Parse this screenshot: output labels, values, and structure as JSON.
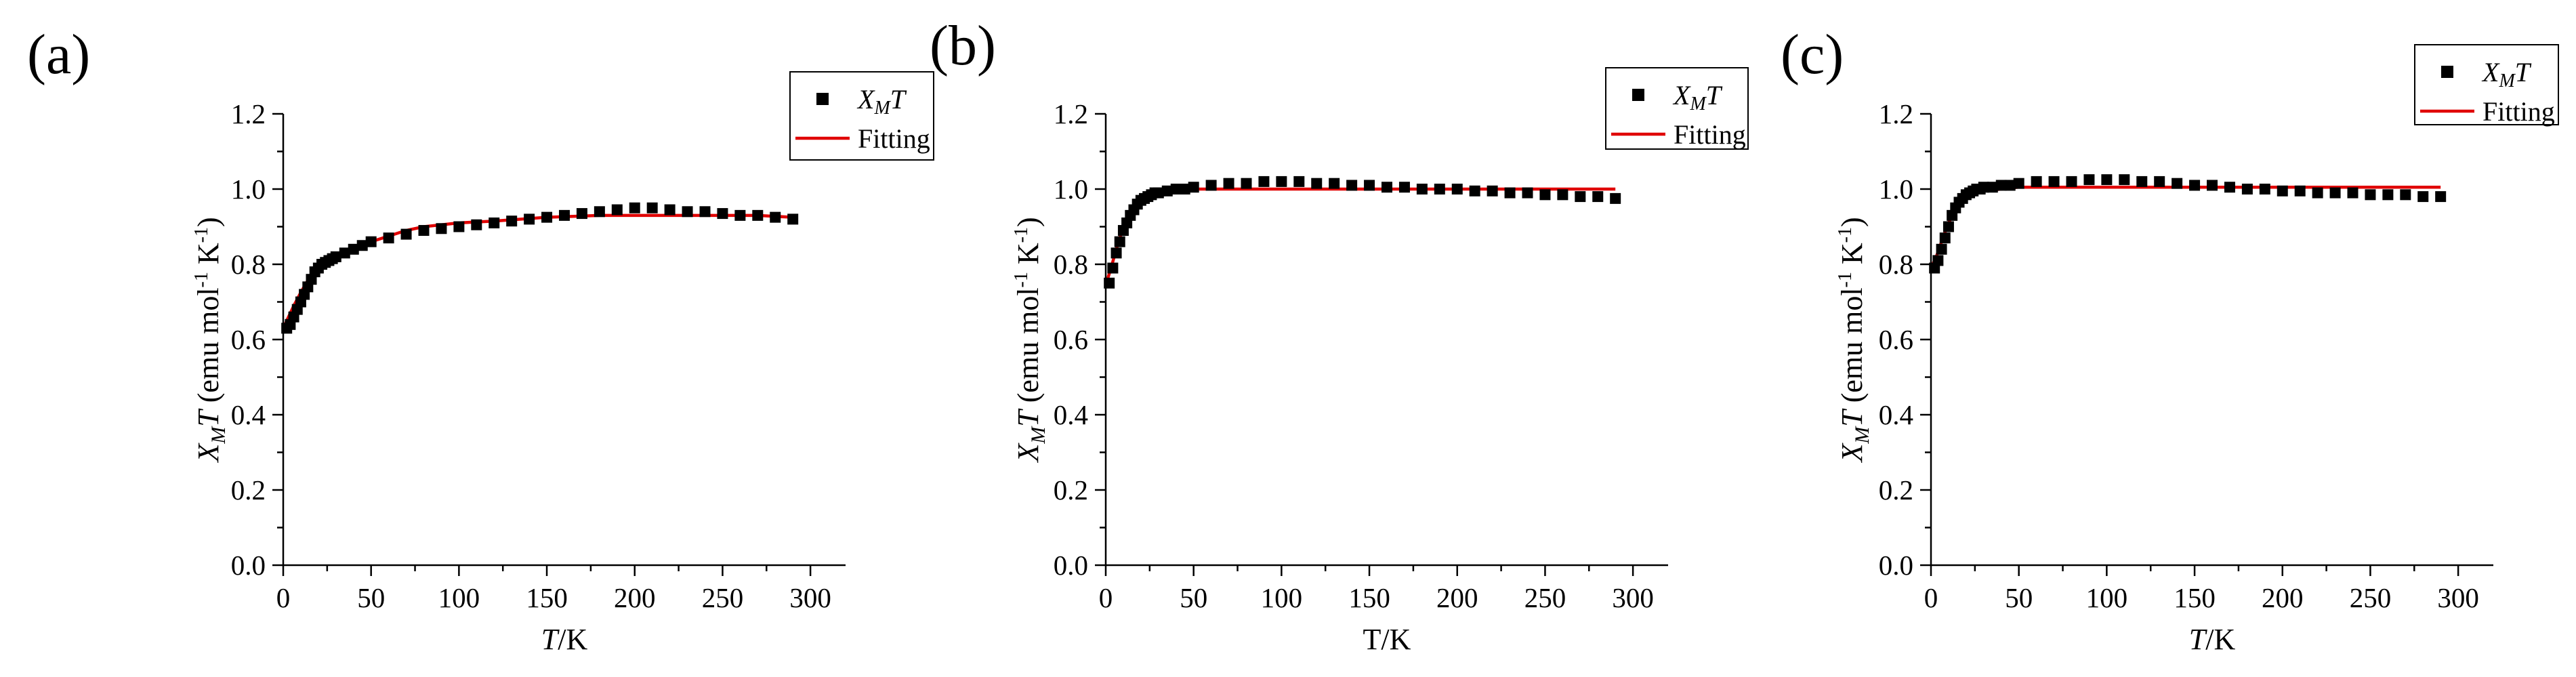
{
  "chart_data": [
    {
      "panel": "(a)",
      "type": "scatter",
      "xlabel": "T/K",
      "xlabel_italic": true,
      "ylabel": "XMT (emu mol-1 K-1)",
      "ylabel_parts": {
        "main": "X",
        "sub": "M",
        "main2": "T",
        "unit": " (emu mol",
        "sup1": "-1",
        "unit2": " K",
        "sup2": "-1",
        "unit3": ")"
      },
      "ylabel_subscript_style": "sub",
      "xlim": [
        0,
        320
      ],
      "ylim": [
        0,
        1.2
      ],
      "xticks": [
        "0",
        "50",
        "100",
        "150",
        "200",
        "250",
        "300"
      ],
      "yticks": [
        "0.0",
        "0.2",
        "0.4",
        "0.6",
        "0.8",
        "1.0",
        "1.2"
      ],
      "legend": {
        "position": "top-right",
        "entries": [
          {
            "label_main": "X",
            "label_sub": "M",
            "label_main2": "T",
            "marker": "square"
          },
          {
            "label_main": "Fitting",
            "marker": "line"
          }
        ]
      },
      "series": [
        {
          "name": "XMT",
          "kind": "markers",
          "x": [
            2,
            4,
            6,
            8,
            10,
            12,
            14,
            16,
            18,
            20,
            22,
            24,
            26,
            28,
            30,
            35,
            40,
            45,
            50,
            60,
            70,
            80,
            90,
            100,
            110,
            120,
            130,
            140,
            150,
            160,
            170,
            180,
            190,
            200,
            210,
            220,
            230,
            240,
            250,
            260,
            270,
            280,
            290
          ],
          "y": [
            0.63,
            0.64,
            0.66,
            0.68,
            0.7,
            0.72,
            0.74,
            0.76,
            0.78,
            0.79,
            0.8,
            0.805,
            0.81,
            0.815,
            0.82,
            0.83,
            0.84,
            0.85,
            0.86,
            0.87,
            0.88,
            0.89,
            0.895,
            0.9,
            0.905,
            0.91,
            0.915,
            0.92,
            0.925,
            0.93,
            0.935,
            0.94,
            0.945,
            0.95,
            0.95,
            0.945,
            0.94,
            0.94,
            0.935,
            0.93,
            0.93,
            0.925,
            0.92
          ]
        },
        {
          "name": "Fitting",
          "kind": "line",
          "x": [
            1,
            3,
            6,
            10,
            15,
            20,
            25,
            30,
            40,
            50,
            60,
            70,
            80,
            100,
            120,
            150,
            180,
            210,
            240,
            270,
            290
          ],
          "y": [
            0.64,
            0.66,
            0.69,
            0.725,
            0.765,
            0.79,
            0.805,
            0.82,
            0.84,
            0.86,
            0.875,
            0.89,
            0.9,
            0.91,
            0.915,
            0.925,
            0.93,
            0.93,
            0.93,
            0.93,
            0.925
          ]
        }
      ]
    },
    {
      "panel": "(b)",
      "type": "scatter",
      "xlabel": "T/K",
      "xlabel_italic": false,
      "ylabel": "XMT (emu mol-1 K-1)",
      "ylabel_parts": {
        "main": "X",
        "sub": "M",
        "main2": "T",
        "unit": " (emu mol",
        "sup1": "-1",
        "unit2": " K",
        "sup2": "-1",
        "unit3": ")"
      },
      "ylabel_subscript_style": "sub",
      "xlim": [
        0,
        320
      ],
      "ylim": [
        0,
        1.2
      ],
      "xticks": [
        "0",
        "50",
        "100",
        "150",
        "200",
        "250",
        "300"
      ],
      "yticks": [
        "0.0",
        "0.2",
        "0.4",
        "0.6",
        "0.8",
        "1.0",
        "1.2"
      ],
      "legend": {
        "position": "top-right",
        "entries": [
          {
            "label_main": "X",
            "label_sub": "M",
            "label_main2": "T",
            "marker": "square"
          },
          {
            "label_main": "Fitting",
            "marker": "line"
          }
        ]
      },
      "series": [
        {
          "name": "XMT",
          "kind": "markers",
          "x": [
            2,
            4,
            6,
            8,
            10,
            12,
            14,
            16,
            18,
            20,
            22,
            24,
            26,
            28,
            30,
            35,
            40,
            45,
            50,
            60,
            70,
            80,
            90,
            100,
            110,
            120,
            130,
            140,
            150,
            160,
            170,
            180,
            190,
            200,
            210,
            220,
            230,
            240,
            250,
            260,
            270,
            280,
            290
          ],
          "y": [
            0.75,
            0.79,
            0.83,
            0.86,
            0.89,
            0.91,
            0.93,
            0.945,
            0.96,
            0.97,
            0.975,
            0.98,
            0.985,
            0.99,
            0.99,
            0.995,
            1.0,
            1.0,
            1.005,
            1.01,
            1.015,
            1.015,
            1.02,
            1.02,
            1.02,
            1.015,
            1.015,
            1.01,
            1.01,
            1.005,
            1.005,
            1.0,
            1.0,
            1.0,
            0.995,
            0.995,
            0.99,
            0.99,
            0.985,
            0.985,
            0.98,
            0.98,
            0.975
          ]
        },
        {
          "name": "Fitting",
          "kind": "line",
          "x": [
            1,
            3,
            6,
            10,
            15,
            20,
            25,
            30,
            40,
            50,
            70,
            100,
            150,
            200,
            250,
            290
          ],
          "y": [
            0.76,
            0.79,
            0.84,
            0.9,
            0.95,
            0.975,
            0.985,
            0.99,
            0.995,
            1.0,
            1.0,
            1.0,
            1.0,
            1.0,
            1.0,
            1.0
          ]
        }
      ]
    },
    {
      "panel": "(c)",
      "type": "scatter",
      "xlabel": "T/K",
      "xlabel_italic": true,
      "ylabel": "XMT (emu mol-1 K-1)",
      "ylabel_parts": {
        "main": "X",
        "sub": "M",
        "main2": "T",
        "unit": " (emu mol",
        "sup1": "-1",
        "unit2": " K",
        "sup2": "-1",
        "unit3": ")"
      },
      "ylabel_subscript_style": "sub",
      "xlim": [
        0,
        320
      ],
      "ylim": [
        0,
        1.2
      ],
      "xticks": [
        "0",
        "50",
        "100",
        "150",
        "200",
        "250",
        "300"
      ],
      "yticks": [
        "0.0",
        "0.2",
        "0.4",
        "0.6",
        "0.8",
        "1.0",
        "1.2"
      ],
      "legend": {
        "position": "top-right",
        "entries": [
          {
            "label_main": "X",
            "label_sub": "M",
            "label_main2": "T",
            "marker": "square"
          },
          {
            "label_main": "Fitting",
            "marker": "line"
          }
        ]
      },
      "series": [
        {
          "name": "XMT",
          "kind": "markers",
          "x": [
            2,
            4,
            6,
            8,
            10,
            12,
            14,
            16,
            18,
            20,
            22,
            24,
            26,
            28,
            30,
            35,
            40,
            45,
            50,
            60,
            70,
            80,
            90,
            100,
            110,
            120,
            130,
            140,
            150,
            160,
            170,
            180,
            190,
            200,
            210,
            220,
            230,
            240,
            250,
            260,
            270,
            280,
            290
          ],
          "y": [
            0.79,
            0.81,
            0.84,
            0.87,
            0.9,
            0.93,
            0.95,
            0.965,
            0.975,
            0.985,
            0.99,
            0.995,
            1.0,
            1.0,
            1.005,
            1.005,
            1.01,
            1.01,
            1.015,
            1.02,
            1.02,
            1.02,
            1.025,
            1.025,
            1.025,
            1.02,
            1.02,
            1.015,
            1.01,
            1.01,
            1.005,
            1.0,
            1.0,
            0.995,
            0.995,
            0.99,
            0.99,
            0.99,
            0.985,
            0.985,
            0.985,
            0.98,
            0.98
          ]
        },
        {
          "name": "Fitting",
          "kind": "line",
          "x": [
            1,
            3,
            6,
            10,
            15,
            20,
            25,
            30,
            40,
            50,
            70,
            100,
            150,
            200,
            250,
            290
          ],
          "y": [
            0.8,
            0.82,
            0.86,
            0.91,
            0.955,
            0.98,
            0.99,
            0.995,
            1.0,
            1.005,
            1.005,
            1.005,
            1.005,
            1.005,
            1.005,
            1.005
          ]
        }
      ]
    }
  ],
  "colors": {
    "fit_line": "#e00000",
    "markers": "#000000",
    "axes": "#000000",
    "background": "#ffffff"
  }
}
